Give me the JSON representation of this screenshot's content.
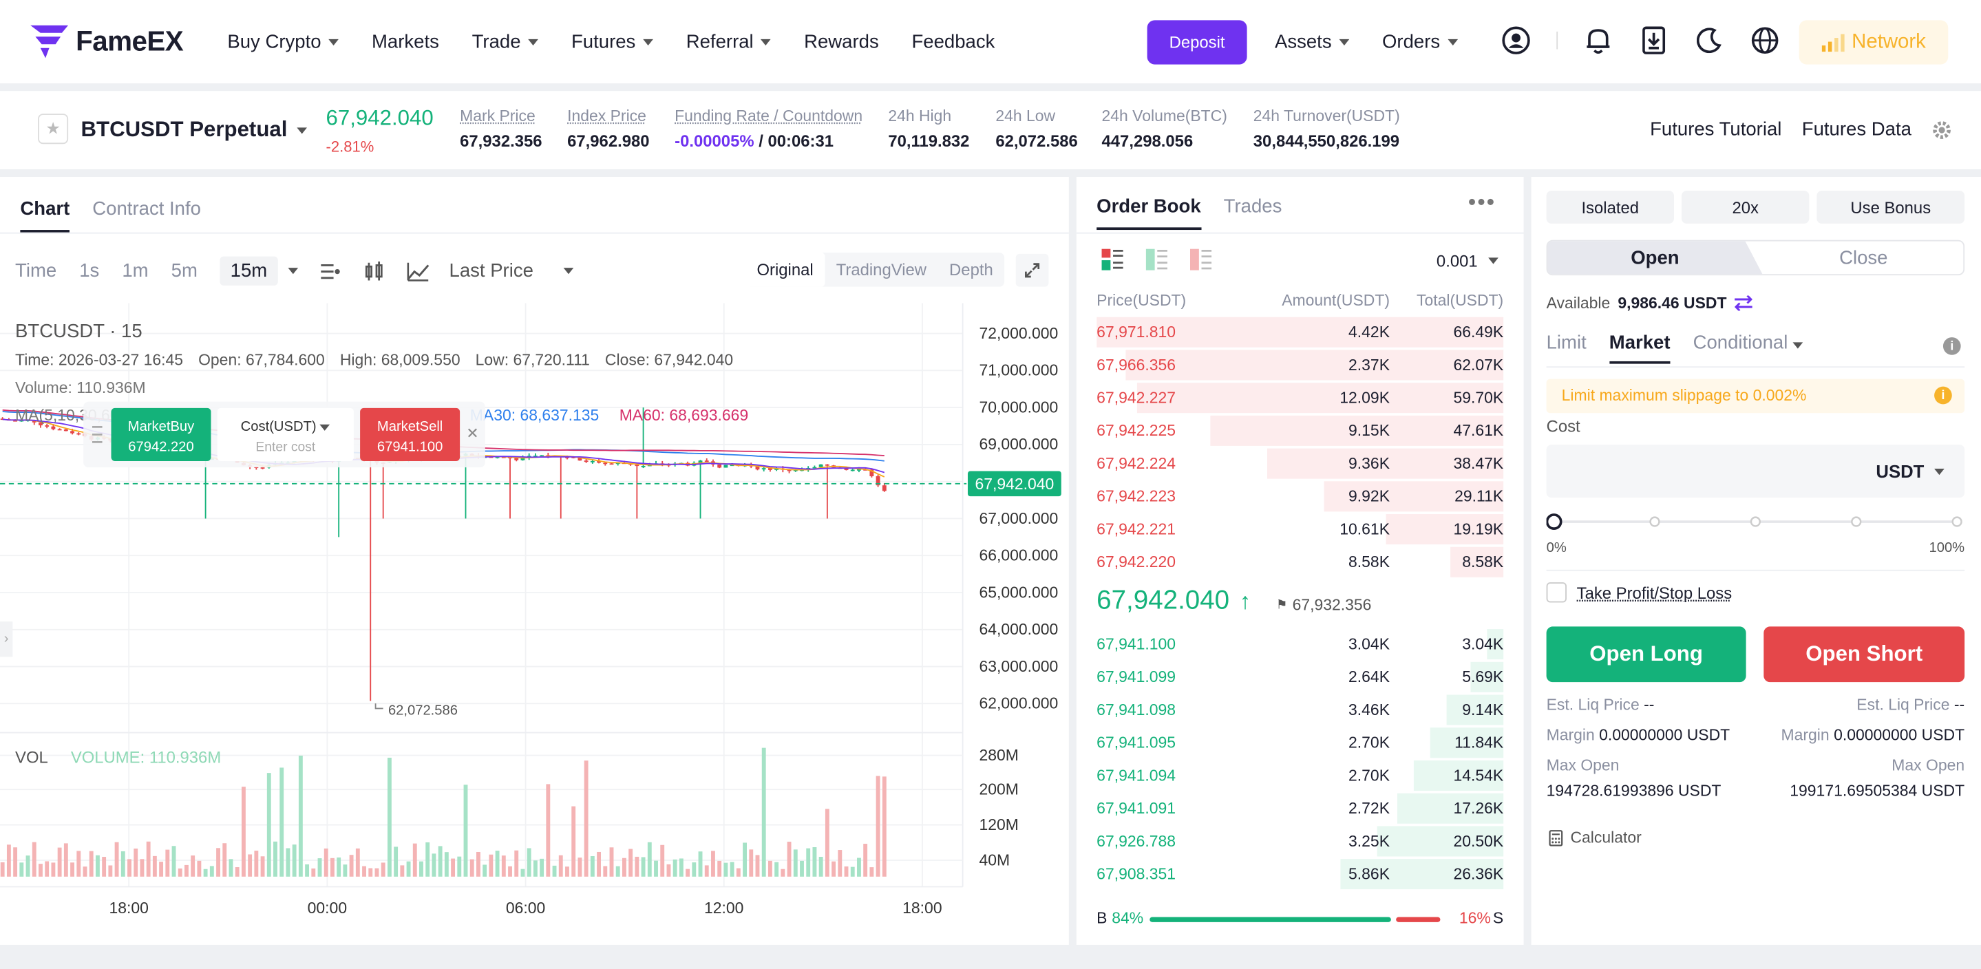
{
  "header": {
    "logo": "FameEX",
    "nav": [
      {
        "label": "Buy Crypto",
        "caret": true
      },
      {
        "label": "Markets",
        "caret": false
      },
      {
        "label": "Trade",
        "caret": true
      },
      {
        "label": "Futures",
        "caret": true
      },
      {
        "label": "Referral",
        "caret": true
      },
      {
        "label": "Rewards",
        "caret": false
      },
      {
        "label": "Feedback",
        "caret": false
      }
    ],
    "deposit": "Deposit",
    "assets": "Assets",
    "orders": "Orders",
    "network": "Network",
    "accent": "#6f32f0"
  },
  "ticker": {
    "symbol": "BTCUSDT Perpetual",
    "last_price": "67,942.040",
    "change": "-2.81%",
    "mark_label": "Mark Price",
    "mark": "67,932.356",
    "index_label": "Index Price",
    "index": "67,962.980",
    "funding_label": "Funding Rate / Countdown",
    "funding": "-0.00005%",
    "countdown": "00:06:31",
    "high_label": "24h High",
    "high": "70,119.832",
    "low_label": "24h Low",
    "low": "62,072.586",
    "vol_label": "24h Volume(BTC)",
    "vol": "447,298.056",
    "turn_label": "24h Turnover(USDT)",
    "turn": "30,844,550,826.199",
    "tutorial": "Futures Tutorial",
    "data": "Futures Data"
  },
  "chart": {
    "tabs": [
      "Chart",
      "Contract Info"
    ],
    "timeframes": [
      "Time",
      "1s",
      "1m",
      "5m"
    ],
    "selected_tf": "15m",
    "price_type": "Last Price",
    "views": [
      "Original",
      "TradingView",
      "Depth"
    ],
    "title": "BTCUSDT · 15",
    "time": "Time: 2026-03-27 16:45",
    "open": "Open: 67,784.600",
    "high": "High: 68,009.550",
    "low": "Low: 67,720.111",
    "close": "Close: 67,942.040",
    "volume_legend": "Volume: 110.936M",
    "ma_label": "MA(5,10,30,60)",
    "ma30": "MA30: 68,637.135",
    "ma60": "MA60: 68,693.669",
    "last_tag": "67,942.040",
    "min_label": "62,072.586",
    "vol_title": "VOL",
    "vol_value": "VOLUME: 110.936M",
    "quick": {
      "buy": "MarketBuy",
      "buy_price": "67942.220",
      "cost": "Cost(USDT)",
      "cost_ph": "Enter cost",
      "sell": "MarketSell",
      "sell_price": "67941.100"
    }
  },
  "chart_data": {
    "type": "candlestick",
    "title": "BTCUSDT · 15",
    "y_ticks": [
      "72,000.000",
      "71,000.000",
      "70,000.000",
      "69,000.000",
      "68,000.000",
      "67,000.000",
      "66,000.000",
      "65,000.000",
      "64,000.000",
      "63,000.000",
      "62,000.000"
    ],
    "ylim": [
      61800,
      72300
    ],
    "x_ticks": [
      "18:00",
      "00:00",
      "06:00",
      "12:00",
      "18:00"
    ],
    "vol_ticks": [
      "280M",
      "200M",
      "120M",
      "40M"
    ],
    "last_price": 67942.04,
    "min_price": 62072.586,
    "colors": {
      "up": "#14b27a",
      "down": "#e5474a",
      "ma5": "#f7a81b",
      "ma10": "#6f32f0",
      "ma30": "#2f80ed",
      "ma60": "#d6336c"
    }
  },
  "orderbook": {
    "tabs": [
      "Order Book",
      "Trades"
    ],
    "precision": "0.001",
    "headers": [
      "Price(USDT)",
      "Amount(USDT)",
      "Total(USDT)"
    ],
    "asks": [
      {
        "p": "67,971.810",
        "a": "4.42K",
        "t": "66.49K",
        "d": 1.0
      },
      {
        "p": "67,966.356",
        "a": "2.37K",
        "t": "62.07K",
        "d": 0.93
      },
      {
        "p": "67,942.227",
        "a": "12.09K",
        "t": "59.70K",
        "d": 0.9
      },
      {
        "p": "67,942.225",
        "a": "9.15K",
        "t": "47.61K",
        "d": 0.72
      },
      {
        "p": "67,942.224",
        "a": "9.36K",
        "t": "38.47K",
        "d": 0.58
      },
      {
        "p": "67,942.223",
        "a": "9.92K",
        "t": "29.11K",
        "d": 0.44
      },
      {
        "p": "67,942.221",
        "a": "10.61K",
        "t": "19.19K",
        "d": 0.29
      },
      {
        "p": "67,942.220",
        "a": "8.58K",
        "t": "8.58K",
        "d": 0.13
      }
    ],
    "mid": "67,942.040",
    "mid_mark": "67,932.356",
    "bids": [
      {
        "p": "67,941.100",
        "a": "3.04K",
        "t": "3.04K",
        "d": 0.04
      },
      {
        "p": "67,941.099",
        "a": "2.64K",
        "t": "5.69K",
        "d": 0.08
      },
      {
        "p": "67,941.098",
        "a": "3.46K",
        "t": "9.14K",
        "d": 0.14
      },
      {
        "p": "67,941.095",
        "a": "2.70K",
        "t": "11.84K",
        "d": 0.18
      },
      {
        "p": "67,941.094",
        "a": "2.70K",
        "t": "14.54K",
        "d": 0.22
      },
      {
        "p": "67,941.091",
        "a": "2.72K",
        "t": "17.26K",
        "d": 0.26
      },
      {
        "p": "67,926.788",
        "a": "3.25K",
        "t": "20.50K",
        "d": 0.31
      },
      {
        "p": "67,908.351",
        "a": "5.86K",
        "t": "26.36K",
        "d": 0.4
      }
    ],
    "buy_label": "B",
    "buy_pct": "84%",
    "buy_ratio": 0.84,
    "sell_label": "S",
    "sell_pct": "16%"
  },
  "trade": {
    "margin_mode": "Isolated",
    "leverage": "20x",
    "bonus": "Use Bonus",
    "open": "Open",
    "close": "Close",
    "available_label": "Available",
    "available": "9,986.46 USDT",
    "order_types": [
      "Limit",
      "Market",
      "Conditional"
    ],
    "selected_type": "Market",
    "warning": "Limit maximum slippage to 0.002%",
    "cost_label": "Cost",
    "cost_unit": "USDT",
    "slider_min": "0%",
    "slider_max": "100%",
    "tpsl": "Take Profit/Stop Loss",
    "open_long": "Open Long",
    "open_short": "Open Short",
    "liq_label": "Est. Liq Price",
    "liq_long": "--",
    "liq_short": "--",
    "margin_label": "Margin",
    "margin_long": "0.00000000 USDT",
    "margin_short": "0.00000000 USDT",
    "maxopen_label": "Max Open",
    "maxopen_long": "194728.61993896 USDT",
    "maxopen_short": "199171.69505384 USDT",
    "calculator": "Calculator"
  }
}
